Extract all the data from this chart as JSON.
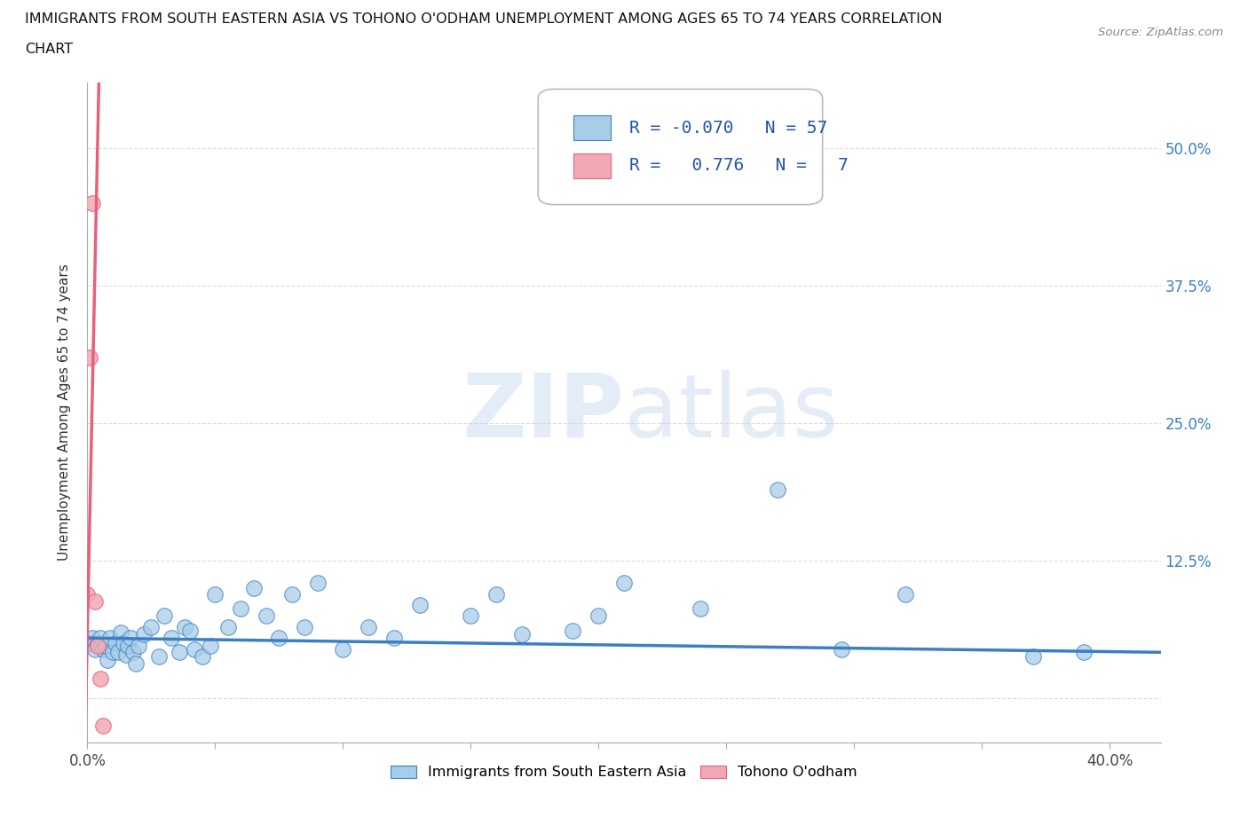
{
  "title_line1": "IMMIGRANTS FROM SOUTH EASTERN ASIA VS TOHONO O'ODHAM UNEMPLOYMENT AMONG AGES 65 TO 74 YEARS CORRELATION",
  "title_line2": "CHART",
  "source_text": "Source: ZipAtlas.com",
  "ylabel": "Unemployment Among Ages 65 to 74 years",
  "xlim": [
    0.0,
    0.42
  ],
  "ylim": [
    -0.04,
    0.56
  ],
  "yticks": [
    0.0,
    0.125,
    0.25,
    0.375,
    0.5
  ],
  "ytick_labels": [
    "",
    "12.5%",
    "25.0%",
    "37.5%",
    "50.0%"
  ],
  "xticks": [
    0.0,
    0.05,
    0.1,
    0.15,
    0.2,
    0.25,
    0.3,
    0.35,
    0.4
  ],
  "xtick_labels": [
    "0.0%",
    "",
    "",
    "",
    "",
    "",
    "",
    "",
    "40.0%"
  ],
  "watermark": "ZIPatlas",
  "blue_color": "#A8CDE8",
  "pink_color": "#F2A8B4",
  "blue_line_color": "#3B7FC4",
  "pink_line_color": "#E8607A",
  "legend_R1": "-0.070",
  "legend_N1": "57",
  "legend_R2": "0.776",
  "legend_N2": "7",
  "blue_scatter_x": [
    0.0,
    0.001,
    0.002,
    0.003,
    0.004,
    0.005,
    0.006,
    0.007,
    0.008,
    0.009,
    0.01,
    0.011,
    0.012,
    0.013,
    0.014,
    0.015,
    0.016,
    0.017,
    0.018,
    0.019,
    0.02,
    0.022,
    0.025,
    0.028,
    0.03,
    0.033,
    0.036,
    0.038,
    0.04,
    0.042,
    0.045,
    0.048,
    0.05,
    0.055,
    0.06,
    0.065,
    0.07,
    0.075,
    0.08,
    0.085,
    0.09,
    0.1,
    0.11,
    0.12,
    0.13,
    0.15,
    0.16,
    0.17,
    0.19,
    0.2,
    0.21,
    0.24,
    0.27,
    0.295,
    0.32,
    0.37,
    0.39
  ],
  "blue_scatter_y": [
    0.05,
    0.05,
    0.055,
    0.045,
    0.05,
    0.055,
    0.045,
    0.048,
    0.035,
    0.055,
    0.042,
    0.05,
    0.042,
    0.06,
    0.05,
    0.04,
    0.048,
    0.055,
    0.042,
    0.032,
    0.048,
    0.058,
    0.065,
    0.038,
    0.075,
    0.055,
    0.042,
    0.065,
    0.062,
    0.045,
    0.038,
    0.048,
    0.095,
    0.065,
    0.082,
    0.1,
    0.075,
    0.055,
    0.095,
    0.065,
    0.105,
    0.045,
    0.065,
    0.055,
    0.085,
    0.075,
    0.095,
    0.058,
    0.062,
    0.075,
    0.105,
    0.082,
    0.19,
    0.045,
    0.095,
    0.038,
    0.042
  ],
  "pink_scatter_x": [
    0.0,
    0.001,
    0.002,
    0.003,
    0.004,
    0.005,
    0.006
  ],
  "pink_scatter_y": [
    0.095,
    0.31,
    0.45,
    0.088,
    0.048,
    0.018,
    -0.025
  ],
  "blue_trend_x": [
    0.0,
    0.42
  ],
  "blue_trend_y": [
    0.055,
    0.042
  ],
  "pink_trend_x": [
    -0.001,
    0.0045
  ],
  "pink_trend_y": [
    -0.05,
    0.56
  ],
  "grid_color": "#CCCCCC",
  "background_color": "#FFFFFF"
}
